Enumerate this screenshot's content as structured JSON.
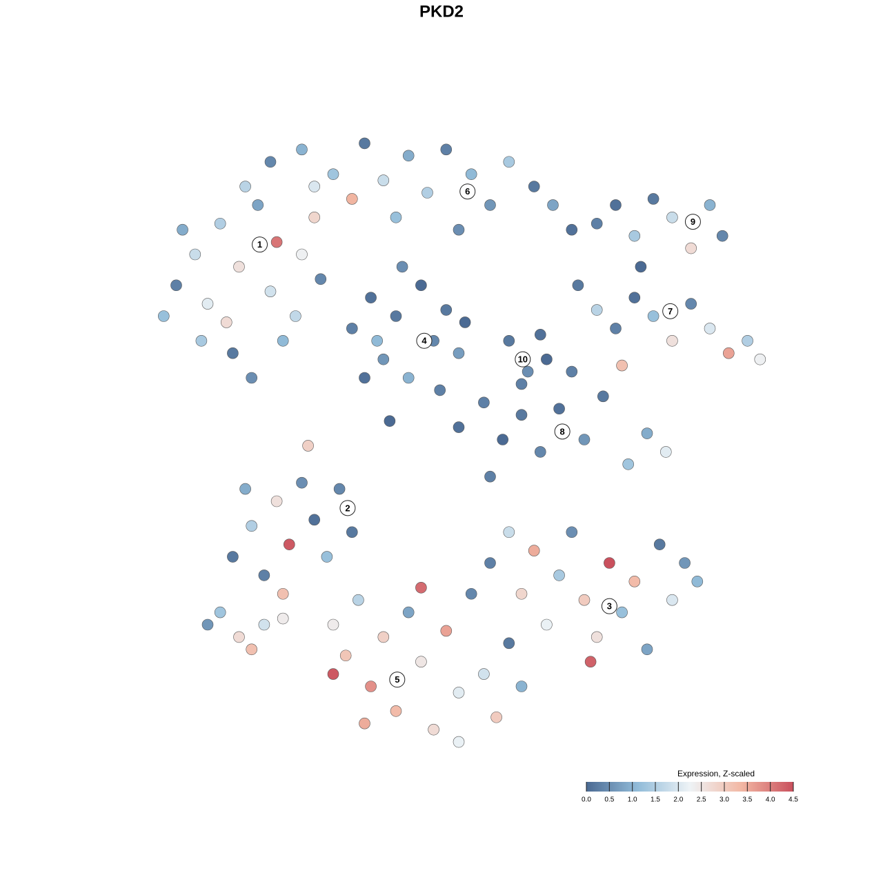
{
  "chart_data": {
    "type": "scatter",
    "title": "PKD2",
    "xlim": [
      0,
      100
    ],
    "ylim": [
      0,
      100
    ],
    "x": [
      3,
      5,
      8,
      10,
      12,
      15,
      18,
      20,
      22,
      25,
      14,
      17,
      24,
      27,
      9,
      6,
      21,
      13,
      28,
      16,
      20,
      25,
      30,
      35,
      38,
      42,
      45,
      48,
      52,
      55,
      58,
      62,
      65,
      68,
      33,
      40,
      50,
      27,
      33,
      36,
      38,
      40,
      42,
      44,
      46,
      48,
      50,
      35,
      41,
      47,
      37,
      51,
      58,
      61,
      63,
      60,
      64,
      72,
      75,
      78,
      81,
      84,
      87,
      90,
      92,
      79,
      69,
      72,
      75,
      78,
      81,
      84,
      87,
      90,
      93,
      96,
      76,
      98,
      50,
      54,
      57,
      60,
      63,
      66,
      70,
      73,
      77,
      80,
      83,
      68,
      14,
      17,
      19,
      21,
      23,
      25,
      27,
      29,
      31,
      33,
      22,
      16,
      55,
      58,
      60,
      62,
      64,
      66,
      68,
      70,
      72,
      74,
      76,
      78,
      80,
      82,
      84,
      86,
      88,
      71,
      30,
      32,
      34,
      36,
      38,
      40,
      42,
      44,
      46,
      48,
      50,
      52,
      54,
      56,
      58,
      60,
      44,
      35,
      50,
      30,
      10,
      12,
      15,
      17,
      19,
      22,
      26,
      39,
      55
    ],
    "y": [
      70,
      75,
      80,
      72,
      85,
      78,
      88,
      74,
      66,
      80,
      64,
      60,
      70,
      86,
      66,
      84,
      82,
      69,
      76,
      91,
      95,
      97,
      93,
      98,
      92,
      96,
      90,
      97,
      93,
      88,
      95,
      91,
      88,
      84,
      89,
      86,
      84,
      91,
      68,
      73,
      63,
      70,
      60,
      75,
      66,
      71,
      64,
      60,
      78,
      58,
      66,
      69,
      66,
      61,
      67,
      59,
      63,
      85,
      88,
      83,
      89,
      86,
      81,
      88,
      83,
      78,
      75,
      71,
      68,
      73,
      70,
      66,
      72,
      68,
      64,
      66,
      62,
      63,
      52,
      56,
      50,
      54,
      48,
      55,
      50,
      57,
      46,
      51,
      48,
      61,
      31,
      36,
      28,
      40,
      33,
      43,
      37,
      31,
      42,
      35,
      25,
      42,
      30,
      35,
      25,
      32,
      20,
      28,
      35,
      24,
      18,
      30,
      22,
      27,
      16,
      33,
      24,
      30,
      27,
      14,
      20,
      15,
      24,
      10,
      18,
      6,
      22,
      14,
      3,
      19,
      9,
      25,
      12,
      5,
      17,
      10,
      26,
      4,
      1,
      12,
      20,
      22,
      18,
      16,
      20,
      21,
      49,
      53,
      44
    ],
    "values": [
      1.2,
      0.3,
      1.8,
      2.1,
      1.5,
      2.6,
      0.8,
      1.9,
      1.1,
      2.3,
      0.2,
      0.5,
      1.7,
      2.8,
      1.4,
      0.9,
      4.1,
      2.7,
      0.4,
      1.6,
      0.4,
      1.0,
      1.3,
      0.2,
      1.8,
      0.9,
      1.5,
      0.3,
      1.1,
      0.6,
      1.4,
      0.2,
      0.8,
      0.1,
      3.4,
      1.2,
      0.5,
      2.0,
      0.3,
      0.1,
      0.6,
      0.2,
      1.0,
      0.0,
      0.4,
      0.2,
      0.7,
      0.1,
      0.5,
      0.3,
      1.1,
      0.0,
      0.2,
      0.5,
      0.1,
      0.3,
      0.0,
      0.3,
      0.1,
      1.4,
      0.2,
      1.8,
      2.7,
      1.0,
      0.4,
      0.0,
      0.2,
      1.6,
      0.3,
      0.1,
      1.2,
      2.6,
      0.4,
      2.0,
      3.6,
      1.5,
      3.2,
      2.3,
      0.1,
      0.3,
      0.0,
      0.2,
      0.4,
      0.1,
      0.6,
      0.2,
      1.3,
      0.9,
      2.1,
      0.3,
      0.2,
      1.5,
      0.3,
      2.6,
      4.4,
      0.5,
      0.1,
      1.2,
      0.4,
      0.2,
      3.2,
      0.9,
      0.3,
      1.8,
      2.8,
      3.5,
      2.2,
      1.4,
      0.5,
      3.0,
      2.6,
      4.5,
      1.2,
      3.3,
      0.8,
      0.2,
      2.0,
      0.6,
      1.1,
      4.3,
      2.4,
      3.1,
      1.6,
      3.8,
      2.9,
      3.3,
      0.8,
      2.5,
      2.7,
      3.6,
      2.1,
      0.4,
      1.9,
      3.0,
      0.2,
      1.0,
      4.2,
      3.5,
      2.2,
      4.4,
      0.6,
      1.3,
      2.7,
      3.2,
      1.9,
      2.4,
      2.9,
      0.0,
      0.3
    ],
    "annotations": [
      {
        "text": "1",
        "x": 18.3,
        "y": 81.6
      },
      {
        "text": "2",
        "x": 32.3,
        "y": 38.9
      },
      {
        "text": "3",
        "x": 74,
        "y": 23
      },
      {
        "text": "4",
        "x": 44.5,
        "y": 66
      },
      {
        "text": "5",
        "x": 40.2,
        "y": 11.1
      },
      {
        "text": "6",
        "x": 51.4,
        "y": 90.2
      },
      {
        "text": "7",
        "x": 83.7,
        "y": 70.8
      },
      {
        "text": "8",
        "x": 66.5,
        "y": 51.3
      },
      {
        "text": "9",
        "x": 87.3,
        "y": 85.3
      },
      {
        "text": "10",
        "x": 60.2,
        "y": 63
      }
    ],
    "colorbar": {
      "title": "Expression, Z-scaled",
      "lim": [
        0,
        4.5
      ],
      "colors": [
        "#4b6a93",
        "#92bcd9",
        "#eef3f6",
        "#f2b7a3",
        "#c9505d"
      ],
      "ticks": [
        {
          "value": 0,
          "label": "0.0"
        },
        0.5,
        {
          "value": 1,
          "label": "1.0"
        },
        1.5,
        {
          "value": 2,
          "label": "2.0"
        },
        2.5,
        {
          "value": 3,
          "label": "3.0"
        },
        3.5,
        {
          "value": 4,
          "label": "4.0"
        },
        4.5
      ]
    }
  }
}
